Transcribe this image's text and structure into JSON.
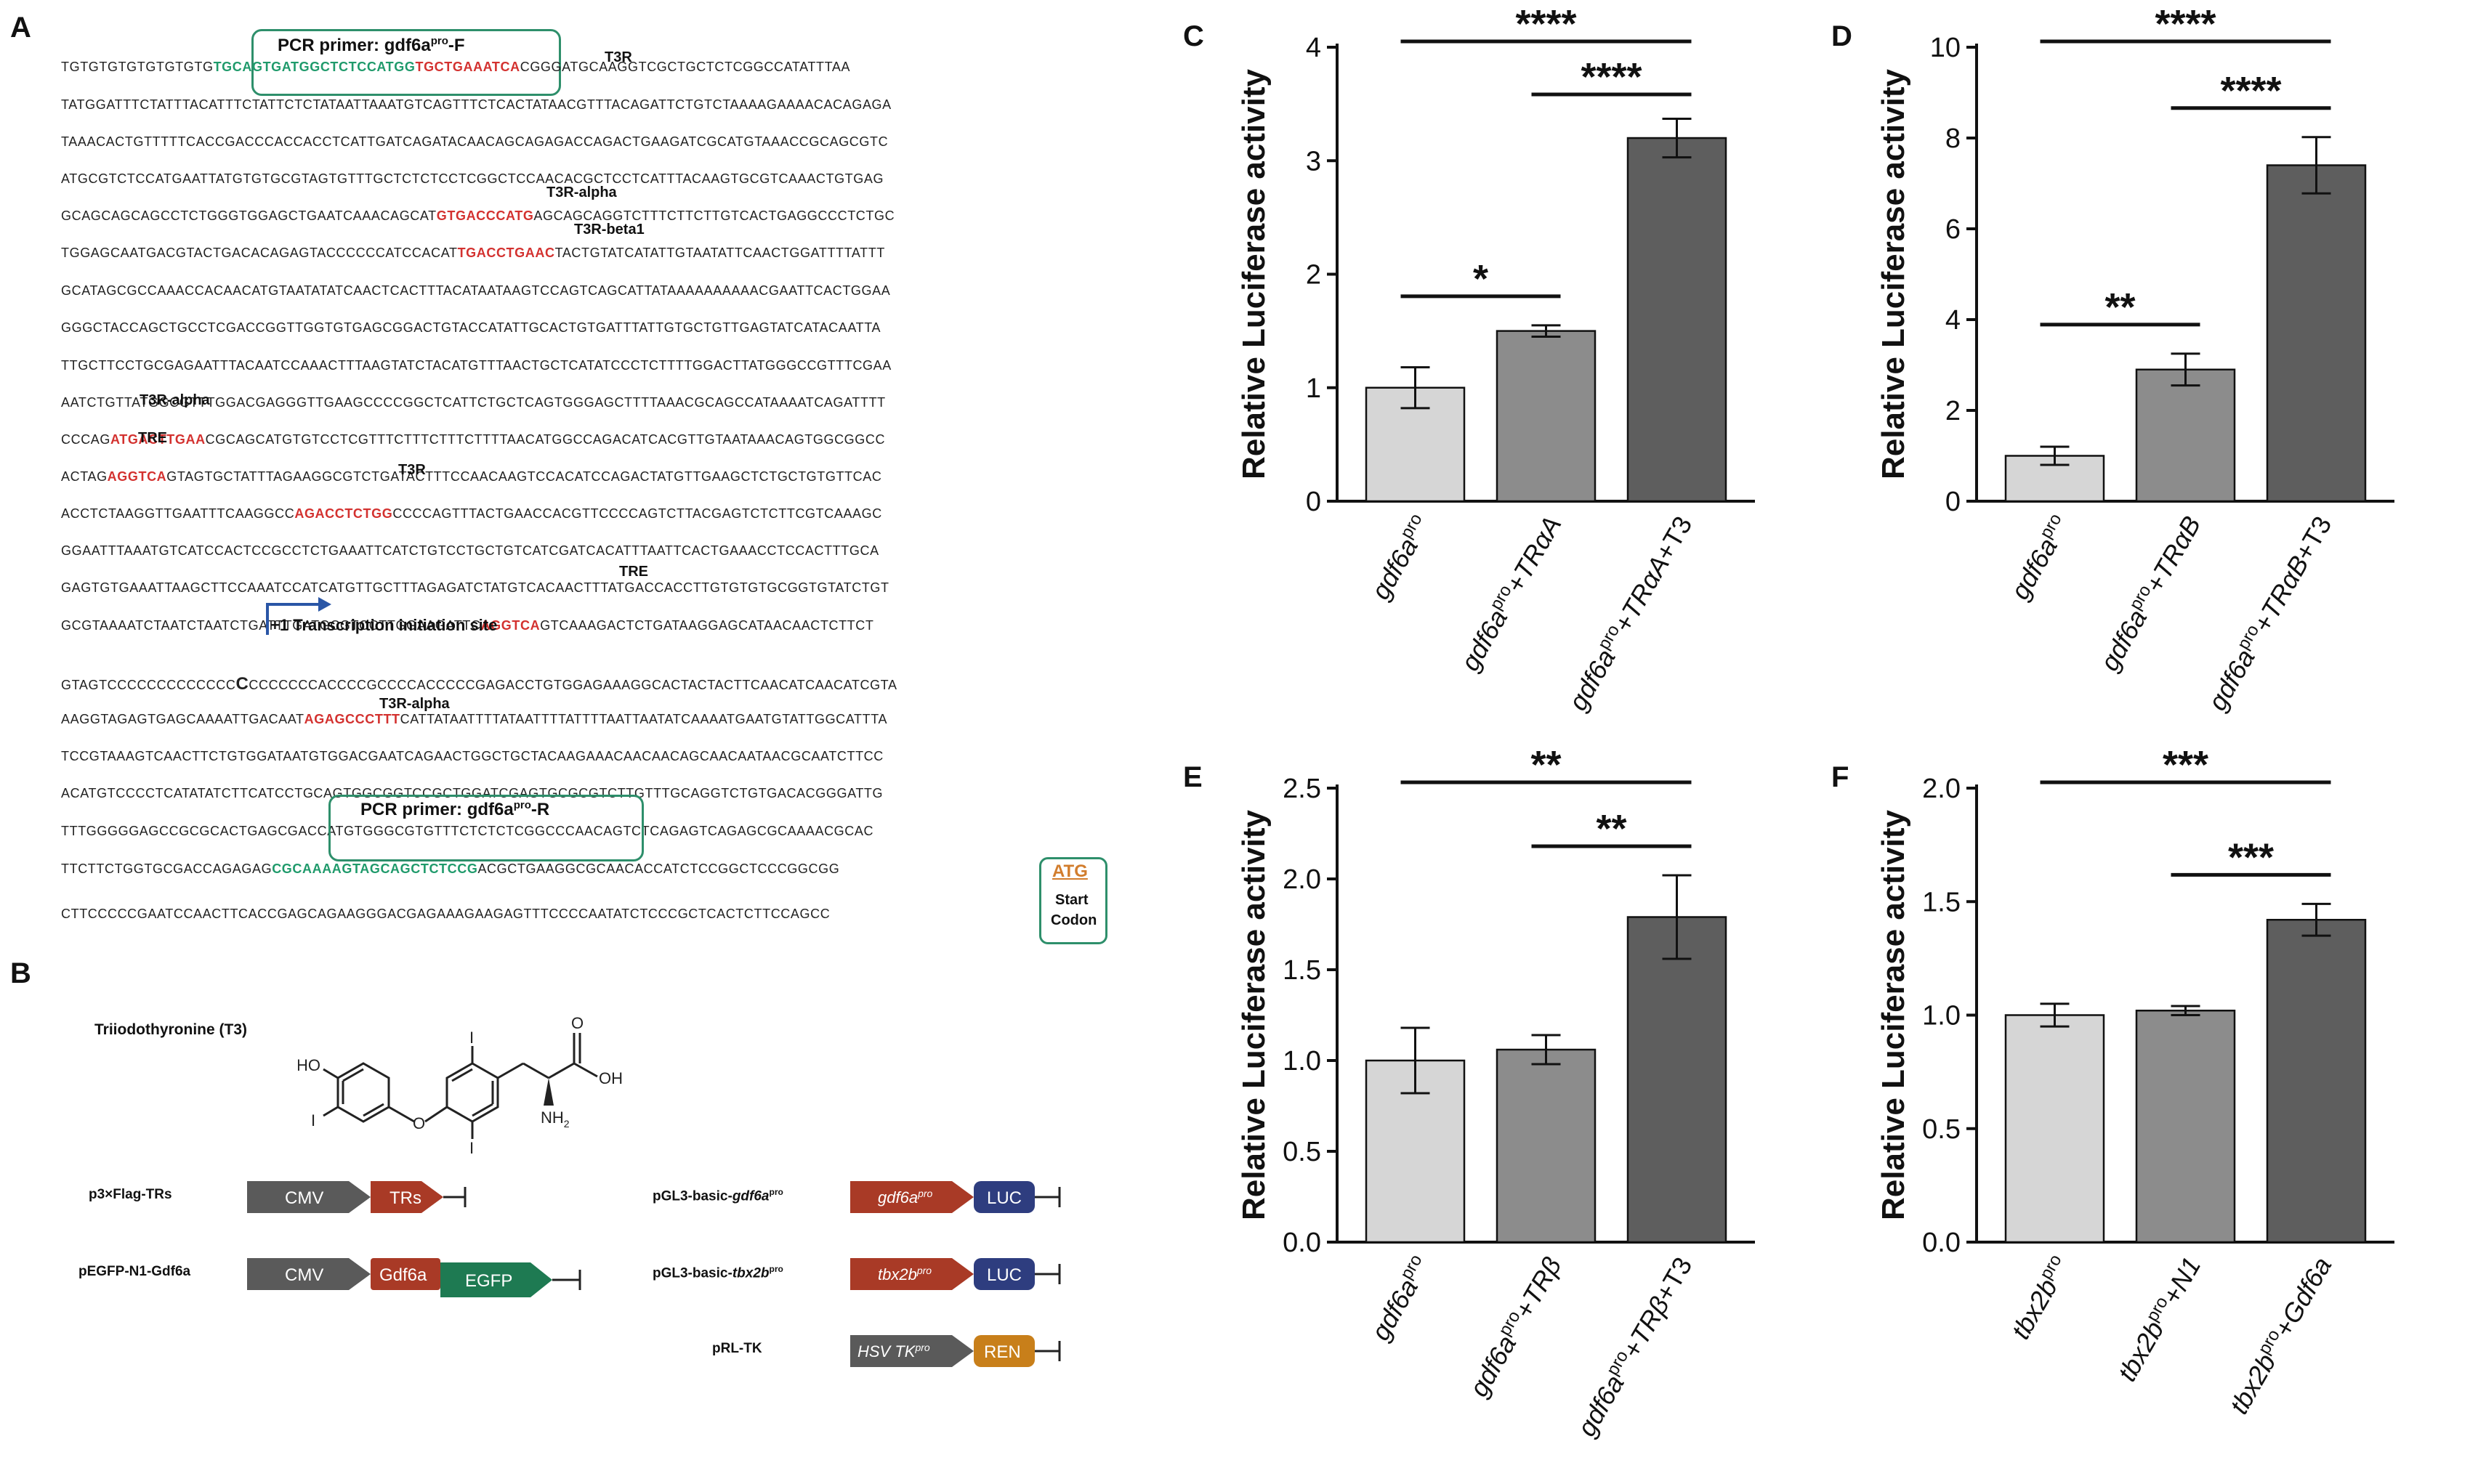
{
  "panel_labels": {
    "a": "A",
    "b": "B",
    "c": "C",
    "d": "D",
    "e": "E",
    "f": "F"
  },
  "panel_a": {
    "lines": [
      {
        "pre": "TGTGTGTGTGTGTGTG",
        "green": "TGCAGTGATGGCTCTCCATGG",
        "red": "TGCTGAAATCA",
        "post": "CGGGATGCAAGGTCGCTGCTCTCGGCCATATTTAA"
      },
      {
        "text": "TATGGATTTCTATTTACATTTCTATTCTCTATAATTAAATGTCAGTTTCTCACTATAACGTTTACAGATTCTGTCTAAAAGAAAACACAGAGA"
      },
      {
        "text": "TAAACACTGTTTTTCACCGACCCACCACCTCATTGATCAGATACAACAGCAGAGACCAGACTGAAGATCGCATGTAAACCGCAGCGTC"
      },
      {
        "text": "ATGCGTCTCCATGAATTATGTGTGCGTAGTGTTTGCTCTCTCCTCGGCTCCAACACGCTCCTCATTTACAAGTGCGTCAAACTGTGAG"
      },
      {
        "pre": "GCAGCAGCAGCCTCTGGGTGGAGCTGAATCAAACAGCAT",
        "red": "GTGACCCATG",
        "post": "AGCAGCAGGTCTTTCTTCTTGTCACTGAGGCCCTCTGC"
      },
      {
        "pre": "TGGAGCAATGACGTACTGACACAGAGTACCCCCCATCCACAT",
        "red": "TGACCTGAAC",
        "post": "TACTGTATCATATTGTAATATTCAACTGGATTTTATTT"
      },
      {
        "text": "GCATAGCGCCAAACCACAACATGTAATATATCAACTCACTTTACATAATAAGTCCAGTCAGCATTATAAAAAAAAAACGAATTCACTGGAA"
      },
      {
        "text": "GGGCTACCAGCTGCCTCGACCGGTTGGTGTGAGCGGACTGTACCATATTGCACTGTGATTTATTGTGCTGTTGAGTATCATACAATTA"
      },
      {
        "text": "TTGCTTCCTGCGAGAATTTACAATCCAAACTTTAAGTATCTACATGTTTAACTGCTCATATCCCTCTTTTGGACTTATGGGCCGTTTCGAA"
      },
      {
        "text": "AATCTGTTATGGCGTTTGGACGAGGGTTGAAGCCCCGGCTCATTCTGCTCAGTGGGAGCTTTTAAACGCAGCCATAAAATCAGATTTT"
      },
      {
        "pre": "CCCAG",
        "red": "ATGACTTGAA",
        "post": "CGCAGCATGTGTCCTCGTTTCTTTCTTTCTTTTAACATGGCCAGACATCACGTTGTAATAAACAGTGGCGGCC"
      },
      {
        "pre": "ACTAG",
        "red": "AGGTCA",
        "post": "GTAGTGCTATTTAGAAGGCGTCTGATACTTTCCAACAAGTCCACATCCAGACTATGTTGAAGCTCTGCTGTGTTCAC"
      },
      {
        "pre": "ACCTCTAAGGTTGAATTTCAAGGCC",
        "red": "AGACCTCTGG",
        "post": "CCCCAGTTTACTGAACCACGTTCCCCAGTCTTACGAGTCTCTTCGTCAAAGC"
      },
      {
        "text": "GGAATTTAAATGTCATCCACTCCGCCTCTGAAATTCATCTGTCCTGCTGTCATCGATCACATTTAATTCACTGAAACCTCCACTTTGCA"
      },
      {
        "text": "GAGTGTGAAATTAAGCTTCCAAATCCATCATGTTGCTTTAGAGATCTATGTCACAACTTTATGACCACCTTGTGTGTGCGGTGTATCTGT"
      },
      {
        "pre": "GCGTAAAATCTAATCTAATCTGATTTGATGCGTCCTTGGAAGATTC",
        "red": "AGGTCA",
        "post": "GTCAAAGACTCTGATAAGGAGCATAACAACTCTTCT"
      },
      {
        "pre": "GTAGTCCCCCCCCCCCCC",
        "bold": "C",
        "post": "CCCCCCCACCCCGCCCCACCCCCGAGACCTGTGGAGAAAGGCACTACTACTTCAACATCAACATCGTA"
      },
      {
        "pre": "AAGGTAGAGTGAGCAAAATTGACAAT",
        "red": "AGAGCCCTTT",
        "post": "CATTATAATTTTATAATTTTATTTTAATTAATATCAAAATGAATGTATTGGCATTTA"
      },
      {
        "text": "TCCGTAAAGTCAACTTCTGTGGATAATGTGGACGAATCAGAACTGGCTGCTACAAGAAACAACAACAGCAACAATAACGCAATCTTCC"
      },
      {
        "text": "ACATGTCCCCTCATATATCTTCATCCTGCAGTGGCGGTCCGCTGGATCGAGTGCGCGTCTTGTTTGCAGGTCTGTGACACGGGATTG"
      },
      {
        "text": "TTTGGGGGAGCCGCGCACTGAGCGACCATGTGGGCGTGTTTCTCTCTCGGCCCAACAGTCTCAGAGTCAGAGCGCAAAACGCAC"
      },
      {
        "pre": "TTCTTCTGGTGCGACCAGAGAG",
        "green": "CGCAAAAGTAGCAGCTCTCCG",
        "post": "ACGCTGAAGGCGCAACACCATCTCCGGCTCCCGGCGG"
      },
      {
        "pre": "CTTCCCCCGAATCCAACTTCACCGAGCAGAAGGGACGAGAAAGAAGAGTTTCCCCAATATCTCCCGCTCACTCTTCCAGCC"
      }
    ],
    "annotations": {
      "t3r_1": "T3R",
      "t3r_alpha_1": "T3R-alpha",
      "t3r_beta1": "T3R-beta1",
      "t3r_alpha_2": "T3R-alpha",
      "tre_1": "TRE",
      "t3r_2": "T3R",
      "tre_2": "TRE",
      "tsi": "+1 Transcription initiation site",
      "t3r_alpha_3": "T3R-alpha",
      "start_atg": "ATG",
      "start_codon_1": "Start",
      "start_codon_2": "Codon"
    },
    "primer_f_pre": "PCR primer: gdf6a",
    "primer_f_sup": "pro",
    "primer_f_post": "-F",
    "primer_r_pre": "PCR primer: gdf6a",
    "primer_r_sup": "pro",
    "primer_r_post": "-R",
    "colors": {
      "red": "#d3312f",
      "green": "#1f9a6b",
      "primer_box": "#2e8f6b",
      "atg": "#d27d2d",
      "arrow": "#2a56a6"
    }
  },
  "panel_b": {
    "molecule_title": "Triiodothyronine (T3)",
    "atoms": {
      "ho": "HO",
      "i1": "I",
      "i2": "I",
      "i3": "I",
      "o": "O",
      "oh": "OH",
      "o2": "O",
      "nh2": "NH",
      "nh2_sub": "2"
    },
    "constructs": [
      {
        "name_pre": "p3×Flag-TRs",
        "parts": [
          "CMV",
          "TRs"
        ]
      },
      {
        "name_pre": "pEGFP-N1-Gdf6a",
        "parts": [
          "CMV",
          "Gdf6a",
          "EGFP"
        ]
      },
      {
        "name_pre": "pGL3-basic-",
        "name_it": "gdf6a",
        "name_sup": "pro",
        "parts": [
          "gdf6a",
          "LUC"
        ],
        "part_sup": "pro"
      },
      {
        "name_pre": "pGL3-basic-",
        "name_it": "tbx2b",
        "name_sup": "pro",
        "parts": [
          "tbx2b",
          "LUC"
        ],
        "part_sup": "pro"
      },
      {
        "name_pre": "pRL-TK",
        "parts": [
          "HSV TK",
          "REN"
        ],
        "part_sup": "pro"
      }
    ],
    "colors": {
      "cmv": "#5a5a5a",
      "tr": "#a93a26",
      "egfp": "#1e7a52",
      "luc": "#2e3d7f",
      "ren": "#c87f1a",
      "promoter": "#a93a26",
      "hsv": "#5a5a5a"
    }
  },
  "chart_data": [
    {
      "panel": "C",
      "type": "bar",
      "ylabel": "Relative Luciferase activity",
      "ylim": [
        0,
        4
      ],
      "yticks": [
        0,
        1,
        2,
        3,
        4
      ],
      "categories": [
        "gdf6a^pro",
        "gdf6a^pro+TRαA",
        "gdf6a^pro+TRαA+T3"
      ],
      "values": [
        1.0,
        1.5,
        3.2
      ],
      "errors": [
        0.18,
        0.05,
        0.17
      ],
      "colors": [
        "#d6d6d6",
        "#8c8c8c",
        "#5e5e5e"
      ],
      "significance": [
        {
          "from": 1,
          "to": 2,
          "label": "*"
        },
        {
          "from": 2,
          "to": 3,
          "label": "****"
        },
        {
          "from": 1,
          "to": 3,
          "label": "****"
        }
      ]
    },
    {
      "panel": "D",
      "type": "bar",
      "ylabel": "Relative Luciferase activity",
      "ylim": [
        0,
        10
      ],
      "yticks": [
        0,
        2,
        4,
        6,
        8,
        10
      ],
      "categories": [
        "gdf6a^pro",
        "gdf6a^pro+TRαB",
        "gdf6a^pro+TRαB+T3"
      ],
      "values": [
        1.0,
        2.9,
        7.4
      ],
      "errors": [
        0.2,
        0.35,
        0.62
      ],
      "colors": [
        "#d6d6d6",
        "#8c8c8c",
        "#5e5e5e"
      ],
      "significance": [
        {
          "from": 1,
          "to": 2,
          "label": "**"
        },
        {
          "from": 2,
          "to": 3,
          "label": "****"
        },
        {
          "from": 1,
          "to": 3,
          "label": "****"
        }
      ]
    },
    {
      "panel": "E",
      "type": "bar",
      "ylabel": "Relative Luciferase activity",
      "ylim": [
        0,
        2.5
      ],
      "yticks": [
        "0.0",
        "0.5",
        "1.0",
        "1.5",
        "2.0",
        "2.5"
      ],
      "categories": [
        "gdf6a^pro",
        "gdf6a^pro+TRβ",
        "gdf6a^pro+TRβ+T3"
      ],
      "values": [
        1.0,
        1.06,
        1.79
      ],
      "errors": [
        0.18,
        0.08,
        0.23
      ],
      "colors": [
        "#d6d6d6",
        "#8c8c8c",
        "#5e5e5e"
      ],
      "significance": [
        {
          "from": 2,
          "to": 3,
          "label": "**"
        },
        {
          "from": 1,
          "to": 3,
          "label": "**"
        }
      ]
    },
    {
      "panel": "F",
      "type": "bar",
      "ylabel": "Relative Luciferase activity",
      "ylim": [
        0,
        2.0
      ],
      "yticks": [
        "0.0",
        "0.5",
        "1.0",
        "1.5",
        "2.0"
      ],
      "categories": [
        "tbx2b^pro",
        "tbx2b^pro+N1",
        "tbx2b^pro+Gdf6a"
      ],
      "values": [
        1.0,
        1.02,
        1.42
      ],
      "errors": [
        0.05,
        0.02,
        0.07
      ],
      "colors": [
        "#d6d6d6",
        "#8c8c8c",
        "#5e5e5e"
      ],
      "significance": [
        {
          "from": 2,
          "to": 3,
          "label": "***"
        },
        {
          "from": 1,
          "to": 3,
          "label": "***"
        }
      ]
    }
  ]
}
